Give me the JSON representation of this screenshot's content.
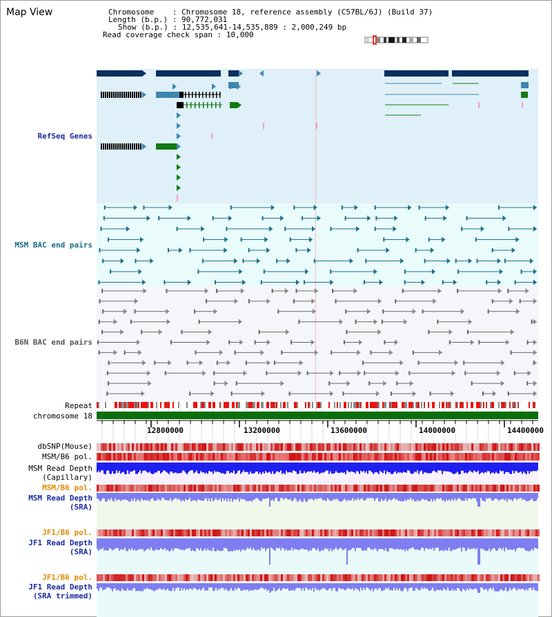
{
  "view_title": "Map View",
  "header": {
    "chromosome_label": "Chromosome",
    "chromosome_value": "Chromosome 18, reference assembly (C57BL/6J) (Build 37)",
    "length_label": "Length (b.p.)",
    "length_value": "90,772,031",
    "show_label": "Show (b.p.)",
    "show_value": "12,535,641-14,535,889 : 2,000,249 bp",
    "coverage_label": "Read coverage check span",
    "coverage_value": "10,000"
  },
  "tracks": {
    "refseq": "RefSeq Genes",
    "msm_bac": "MSM BAC end pairs",
    "b6n_bac": "B6N BAC end pairs",
    "repeat": "Repeat",
    "chromosome": "chromosome 18",
    "dbsnp": "dbSNP(Mouse)",
    "msm_b6_pol": "MSM/B6 pol.",
    "msm_read_depth_cap_1": "MSM Read Depth",
    "msm_read_depth_cap_2": "(Capillary)",
    "msm_b6_pol_2": "MSM/B6 pol.",
    "msm_read_depth_sra_1": "MSM Read Depth",
    "msm_read_depth_sra_2": "(SRA)",
    "jf1_b6_pol": "JF1/B6 pol.",
    "jf1_read_depth_sra_1": "JF1 Read Depth",
    "jf1_read_depth_sra_2": "(SRA)",
    "jf1_b6_pol_2": "JF1/B6 pol.",
    "jf1_read_depth_trim_1": "JF1 Read Depth",
    "jf1_read_depth_trim_2": "(SRA trimmed)"
  },
  "axis_ticks": [
    "12800000",
    "13200000",
    "13600000",
    "14000000",
    "14400000"
  ],
  "colors": {
    "refseq_bg": "#dff0f8",
    "msm_bg": "#e9fbfb",
    "b6n_bg": "#f4f6fa",
    "gene_dark": "#0a2f5e",
    "gene_mid": "#3f86ad",
    "gene_green": "#137a13",
    "bac_teal": "#1f6e8c",
    "bac_grey": "#666666",
    "chromosome_green": "#0a6e0a",
    "label_blue": "#1a2c9e",
    "label_teal": "#1a6c87",
    "label_orange": "#e08a00",
    "depth_blue": "#1f1ff0",
    "depth_light": "#7e7ef0"
  }
}
